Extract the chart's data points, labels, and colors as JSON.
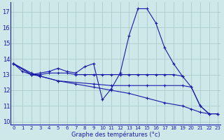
{
  "xlabel": "Graphe des températures (°c)",
  "background_color": "#cce8e8",
  "grid_color": "#aacccc",
  "line_color": "#1a1aaa",
  "border_color": "#1a1aaa",
  "ylim": [
    9.8,
    17.6
  ],
  "xlim": [
    -0.3,
    23.3
  ],
  "yticks": [
    10,
    11,
    12,
    13,
    14,
    15,
    16,
    17
  ],
  "xticks": [
    0,
    1,
    2,
    3,
    4,
    5,
    6,
    7,
    8,
    9,
    10,
    11,
    12,
    13,
    14,
    15,
    16,
    17,
    18,
    19,
    20,
    21,
    22,
    23
  ],
  "lines": [
    {
      "x": [
        0,
        1,
        2,
        3,
        4,
        5,
        6,
        7,
        8,
        9,
        10,
        11,
        12,
        13,
        14,
        15,
        16,
        17,
        18,
        19,
        20,
        21,
        22,
        23
      ],
      "y": [
        13.7,
        13.2,
        13.0,
        13.1,
        13.2,
        13.4,
        13.2,
        13.1,
        13.5,
        13.7,
        11.4,
        12.1,
        13.1,
        15.5,
        17.2,
        17.2,
        16.3,
        14.7,
        13.7,
        12.9,
        12.2,
        11.0,
        10.5,
        10.5
      ]
    },
    {
      "x": [
        0,
        2,
        3,
        4,
        5,
        6,
        7,
        8,
        9,
        10,
        11,
        12,
        13,
        14,
        15,
        16,
        17,
        18,
        19
      ],
      "y": [
        13.7,
        13.0,
        13.0,
        13.1,
        13.1,
        13.1,
        13.0,
        13.0,
        13.0,
        13.0,
        13.0,
        13.0,
        13.0,
        13.0,
        13.0,
        13.0,
        13.0,
        13.0,
        12.9
      ]
    },
    {
      "x": [
        0,
        2,
        3,
        5,
        7,
        9,
        11,
        13,
        15,
        17,
        19,
        20,
        21,
        22,
        23
      ],
      "y": [
        13.7,
        13.1,
        12.9,
        12.6,
        12.4,
        12.2,
        12.0,
        11.8,
        11.5,
        11.2,
        11.0,
        10.8,
        10.6,
        10.5,
        10.5
      ]
    },
    {
      "x": [
        0,
        2,
        3,
        5,
        9,
        11,
        13,
        15,
        17,
        19,
        20,
        21,
        22,
        23
      ],
      "y": [
        13.7,
        13.0,
        12.9,
        12.6,
        12.4,
        12.3,
        12.3,
        12.3,
        12.3,
        12.3,
        12.2,
        11.0,
        10.5,
        10.5
      ]
    }
  ]
}
